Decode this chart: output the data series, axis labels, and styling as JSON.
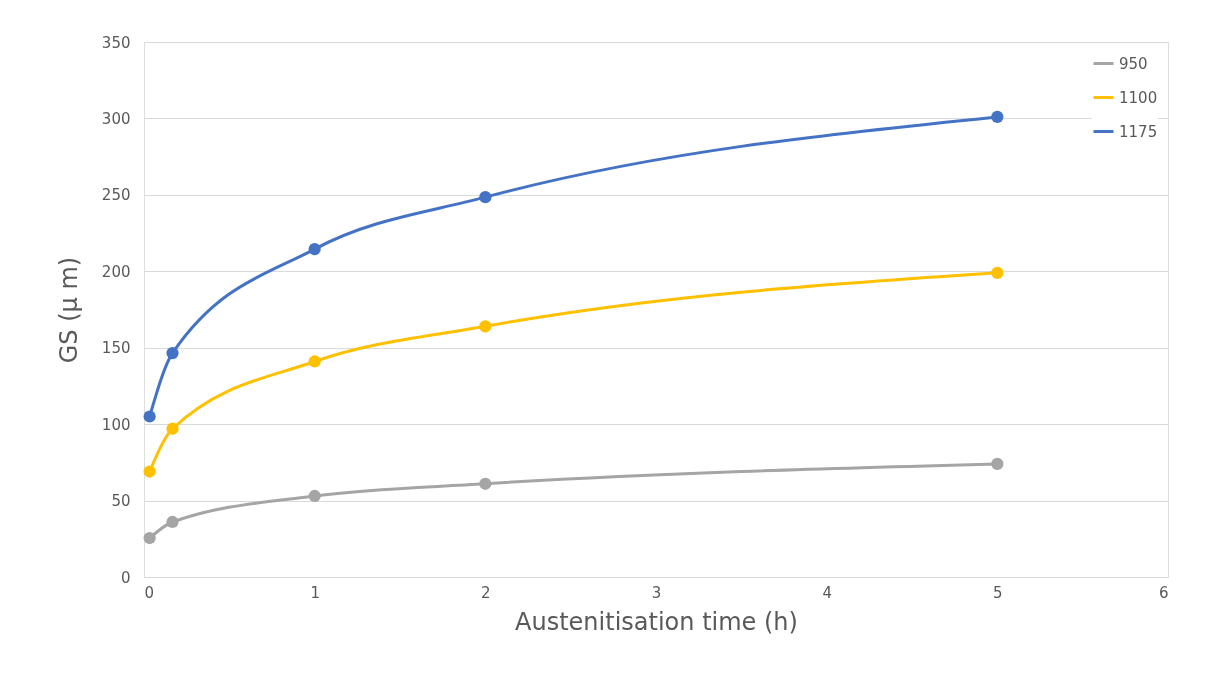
{
  "chart_data": {
    "type": "line",
    "xlabel": "Austenitisation time (h)",
    "ylabel": "GS (μ m)",
    "xlim": [
      0,
      6
    ],
    "xticks": [
      0,
      1,
      2,
      3,
      4,
      5,
      6
    ],
    "ylim": [
      0,
      350
    ],
    "yticks": [
      0,
      50,
      100,
      150,
      200,
      250,
      300,
      350
    ],
    "grid": "y",
    "legend": "top right",
    "marker": "circle",
    "line_style": "solid",
    "series": [
      {
        "name": "950",
        "color": "#a5a5a5",
        "x": [
          0.033,
          0.167,
          1,
          2,
          5
        ],
        "values": [
          25.5,
          36,
          53,
          61,
          74
        ]
      },
      {
        "name": "1100",
        "color": "#ffc000",
        "x": [
          0.033,
          0.167,
          1,
          2,
          5
        ],
        "values": [
          69,
          97,
          141,
          164,
          199
        ]
      },
      {
        "name": "1175",
        "color": "#4472c4",
        "x": [
          0.033,
          0.167,
          1,
          2,
          5
        ],
        "values": [
          105,
          146.5,
          214.5,
          248.5,
          301
        ]
      }
    ]
  }
}
